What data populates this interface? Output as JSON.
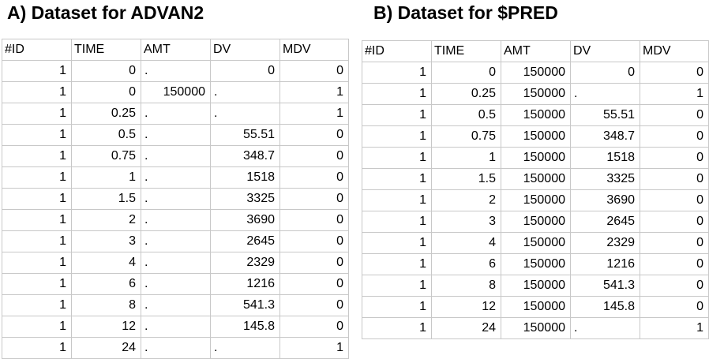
{
  "panel_a": {
    "title": "A) Dataset for ADVAN2",
    "headers": [
      "#ID",
      "TIME",
      "AMT",
      "DV",
      "MDV"
    ],
    "rows": [
      [
        "1",
        "0",
        ".",
        "0",
        "0"
      ],
      [
        "1",
        "0",
        "150000",
        ".",
        "1"
      ],
      [
        "1",
        "0.25",
        ".",
        ".",
        "1"
      ],
      [
        "1",
        "0.5",
        ".",
        "55.51",
        "0"
      ],
      [
        "1",
        "0.75",
        ".",
        "348.7",
        "0"
      ],
      [
        "1",
        "1",
        ".",
        "1518",
        "0"
      ],
      [
        "1",
        "1.5",
        ".",
        "3325",
        "0"
      ],
      [
        "1",
        "2",
        ".",
        "3690",
        "0"
      ],
      [
        "1",
        "3",
        ".",
        "2645",
        "0"
      ],
      [
        "1",
        "4",
        ".",
        "2329",
        "0"
      ],
      [
        "1",
        "6",
        ".",
        "1216",
        "0"
      ],
      [
        "1",
        "8",
        ".",
        "541.3",
        "0"
      ],
      [
        "1",
        "12",
        ".",
        "145.8",
        "0"
      ],
      [
        "1",
        "24",
        ".",
        ".",
        "1"
      ]
    ]
  },
  "panel_b": {
    "title": "B) Dataset for $PRED",
    "headers": [
      "#ID",
      "TIME",
      "AMT",
      "DV",
      "MDV"
    ],
    "rows": [
      [
        "1",
        "0",
        "150000",
        "0",
        "0"
      ],
      [
        "1",
        "0.25",
        "150000",
        ".",
        "1"
      ],
      [
        "1",
        "0.5",
        "150000",
        "55.51",
        "0"
      ],
      [
        "1",
        "0.75",
        "150000",
        "348.7",
        "0"
      ],
      [
        "1",
        "1",
        "150000",
        "1518",
        "0"
      ],
      [
        "1",
        "1.5",
        "150000",
        "3325",
        "0"
      ],
      [
        "1",
        "2",
        "150000",
        "3690",
        "0"
      ],
      [
        "1",
        "3",
        "150000",
        "2645",
        "0"
      ],
      [
        "1",
        "4",
        "150000",
        "2329",
        "0"
      ],
      [
        "1",
        "6",
        "150000",
        "1216",
        "0"
      ],
      [
        "1",
        "8",
        "150000",
        "541.3",
        "0"
      ],
      [
        "1",
        "12",
        "150000",
        "145.8",
        "0"
      ],
      [
        "1",
        "24",
        "150000",
        ".",
        "1"
      ]
    ]
  }
}
